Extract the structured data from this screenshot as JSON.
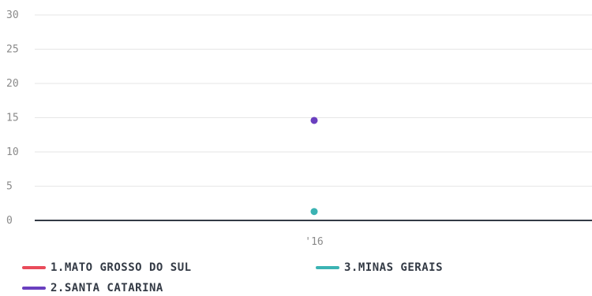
{
  "chart_data": {
    "type": "scatter",
    "x": [
      "'16"
    ],
    "ylim": [
      0,
      30
    ],
    "yticks": [
      0,
      5,
      10,
      15,
      20,
      25,
      30
    ],
    "grid": true,
    "legend_position": "bottom",
    "series": [
      {
        "name": "1.MATO GROSSO DO SUL",
        "color": "#e94b5b",
        "values": [
          null
        ]
      },
      {
        "name": "2.SANTA CATARINA",
        "color": "#6a3fbf",
        "values": [
          14.6
        ]
      },
      {
        "name": "3.MINAS GERAIS",
        "color": "#3bb3b3",
        "values": [
          1.3
        ]
      }
    ]
  }
}
